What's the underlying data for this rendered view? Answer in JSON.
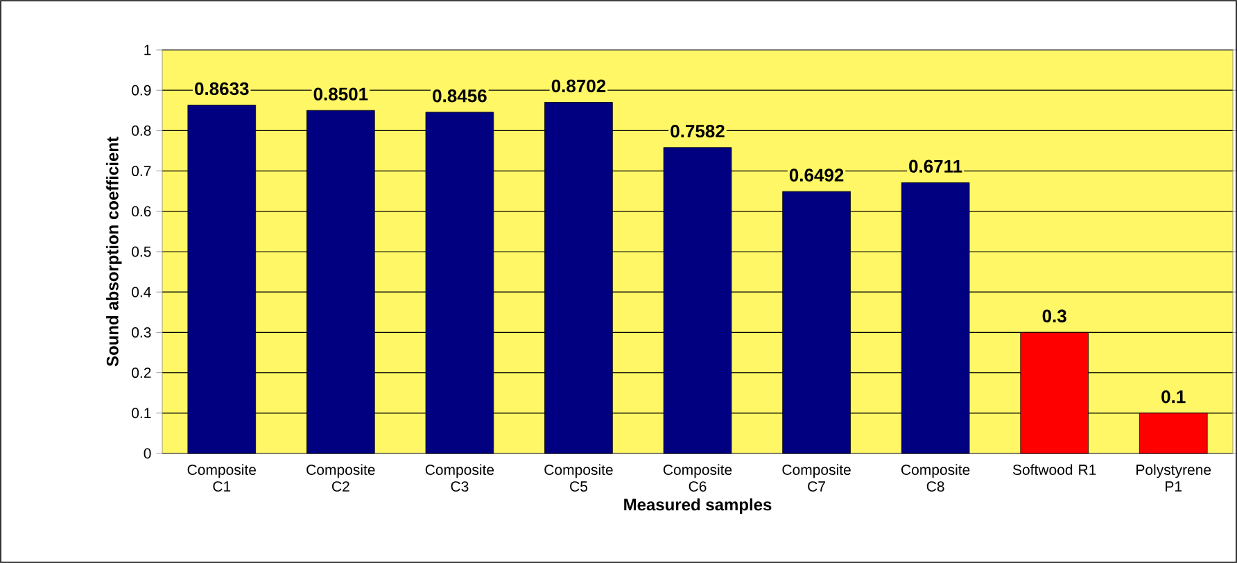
{
  "chart_data": {
    "type": "bar",
    "xlabel": "Measured samples",
    "ylabel": "Sound absorption coefficient",
    "categories": [
      "Composite C1",
      "Composite C2",
      "Composite C3",
      "Composite C5",
      "Composite C6",
      "Composite C7",
      "Composite C8",
      "Softwood R1",
      "Polystyrene P1"
    ],
    "values": [
      0.8633,
      0.8501,
      0.8456,
      0.8702,
      0.7582,
      0.6492,
      0.6711,
      0.3,
      0.1
    ],
    "colors": [
      "#000080",
      "#000080",
      "#000080",
      "#000080",
      "#000080",
      "#000080",
      "#000080",
      "#ff0000",
      "#ff0000"
    ],
    "ylim": [
      0,
      1
    ],
    "yticks": [
      0,
      0.1,
      0.2,
      0.3,
      0.4,
      0.5,
      0.6,
      0.7,
      0.8,
      0.9,
      1
    ],
    "grid": "y",
    "data_labels": true
  }
}
